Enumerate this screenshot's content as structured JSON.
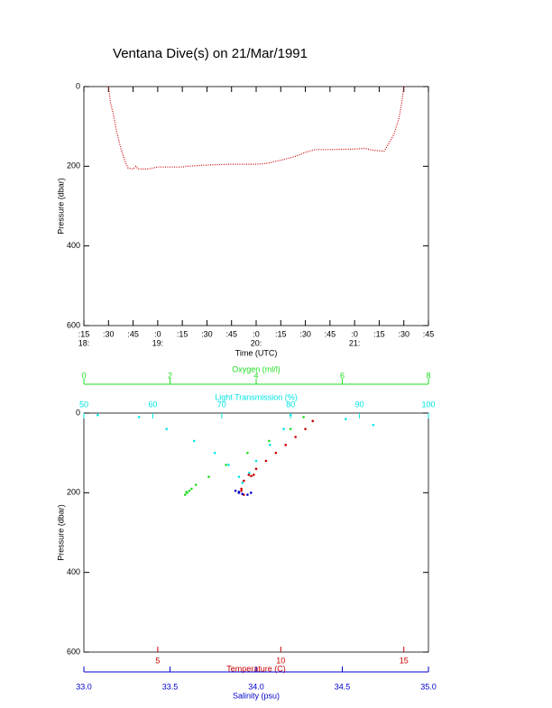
{
  "chart_data": [
    {
      "type": "line",
      "title": "Ventana Dive(s) on 21/Mar/1991",
      "x_label": "Time (UTC)",
      "y_label": "Pressure (dbar)",
      "xlim": [
        18.25,
        21.75
      ],
      "xticks": [
        {
          "value": 18.25,
          "label": ":15"
        },
        {
          "value": 18.5,
          "label": ":30"
        },
        {
          "value": 18.75,
          "label": ":45"
        },
        {
          "value": 19,
          "label": ":0"
        },
        {
          "value": 19.25,
          "label": ":15"
        },
        {
          "value": 19.5,
          "label": ":30"
        },
        {
          "value": 19.75,
          "label": ":45"
        },
        {
          "value": 20,
          "label": ":0"
        },
        {
          "value": 20.25,
          "label": ":15"
        },
        {
          "value": 20.5,
          "label": ":30"
        },
        {
          "value": 20.75,
          "label": ":45"
        },
        {
          "value": 21,
          "label": ":0"
        },
        {
          "value": 21.25,
          "label": ":15"
        },
        {
          "value": 21.5,
          "label": ":30"
        },
        {
          "value": 21.75,
          "label": ":45"
        }
      ],
      "hour_labels": [
        {
          "value": 18.25,
          "label": "18:"
        },
        {
          "value": 19,
          "label": "19:"
        },
        {
          "value": 20,
          "label": "20:"
        },
        {
          "value": 21,
          "label": "21:"
        }
      ],
      "ylim": [
        0,
        600
      ],
      "yreverse": true,
      "yticks": [
        0,
        200,
        400,
        600
      ],
      "series": [
        {
          "color": "#cc0000",
          "x": [
            18.5,
            18.52,
            18.55,
            18.58,
            18.62,
            18.65,
            18.68,
            18.7,
            18.75,
            18.78,
            18.8,
            18.9,
            19.0,
            19.25,
            19.3,
            19.5,
            19.75,
            20.0,
            20.1,
            20.25,
            20.4,
            20.5,
            20.6,
            20.75,
            21.0,
            21.1,
            21.2,
            21.3,
            21.33,
            21.4,
            21.45,
            21.48,
            21.5
          ],
          "values": [
            0,
            40,
            70,
            110,
            150,
            175,
            195,
            205,
            207,
            200,
            207,
            207,
            202,
            202,
            200,
            197,
            195,
            195,
            193,
            185,
            175,
            165,
            158,
            158,
            157,
            155,
            160,
            162,
            150,
            120,
            80,
            40,
            0
          ]
        }
      ]
    },
    {
      "type": "scatter",
      "y_label": "Pressure (dbar)",
      "ylim": [
        0,
        600
      ],
      "yreverse": true,
      "yticks": [
        0,
        200,
        400,
        600
      ],
      "xaxes": [
        {
          "label": "Oxygen (ml/l)",
          "color": "#22dd22",
          "xlim": [
            0,
            8
          ],
          "xticks": [
            0,
            2,
            4,
            6,
            8
          ]
        },
        {
          "label": "Light Transmission (%)",
          "color": "#00e5e5",
          "xlim": [
            50,
            100
          ],
          "xticks": [
            50,
            60,
            70,
            80,
            90,
            100
          ]
        },
        {
          "label": "Temperature (C)",
          "color": "#cc0000",
          "xlim": [
            2,
            16
          ],
          "xticks": [
            5,
            10,
            15
          ]
        },
        {
          "label": "Salinity (psu)",
          "color": "#0000cc",
          "xlim": [
            33,
            35
          ],
          "xticks": [
            {
              "value": 33,
              "label": "33.0"
            },
            33.5,
            {
              "value": 34,
              "label": "34.0"
            },
            34.5,
            {
              "value": 35,
              "label": "35.0"
            }
          ]
        }
      ],
      "series": [
        {
          "xaxis": 0,
          "color": "#22dd22",
          "x": [
            5.1,
            4.8,
            4.3,
            3.8,
            3.3,
            2.9,
            2.6,
            2.45,
            2.4,
            2.35,
            2.5,
            2.38
          ],
          "values": [
            10,
            40,
            70,
            100,
            130,
            160,
            180,
            195,
            200,
            205,
            190,
            198
          ]
        },
        {
          "xaxis": 1,
          "color": "#00e5e5",
          "x": [
            52,
            58,
            62,
            66,
            69,
            71,
            72.5,
            73,
            80,
            79,
            77,
            75,
            74,
            88,
            92
          ],
          "values": [
            5,
            10,
            40,
            70,
            100,
            130,
            160,
            175,
            5,
            40,
            80,
            120,
            150,
            15,
            30
          ]
        },
        {
          "xaxis": 2,
          "color": "#cc0000",
          "x": [
            11.3,
            11,
            10.6,
            10.2,
            9.8,
            9.4,
            9.0,
            8.7,
            8.8,
            8.9,
            8.5,
            8.4,
            8.3,
            8.5,
            8.4
          ],
          "values": [
            20,
            40,
            60,
            80,
            100,
            120,
            140,
            155,
            158,
            155,
            170,
            190,
            200,
            205,
            195
          ]
        },
        {
          "xaxis": 3,
          "color": "#0000cc",
          "x": [
            33.88,
            33.9,
            33.92,
            33.95,
            33.9,
            33.97
          ],
          "values": [
            195,
            200,
            203,
            205,
            198,
            200
          ]
        }
      ]
    }
  ]
}
